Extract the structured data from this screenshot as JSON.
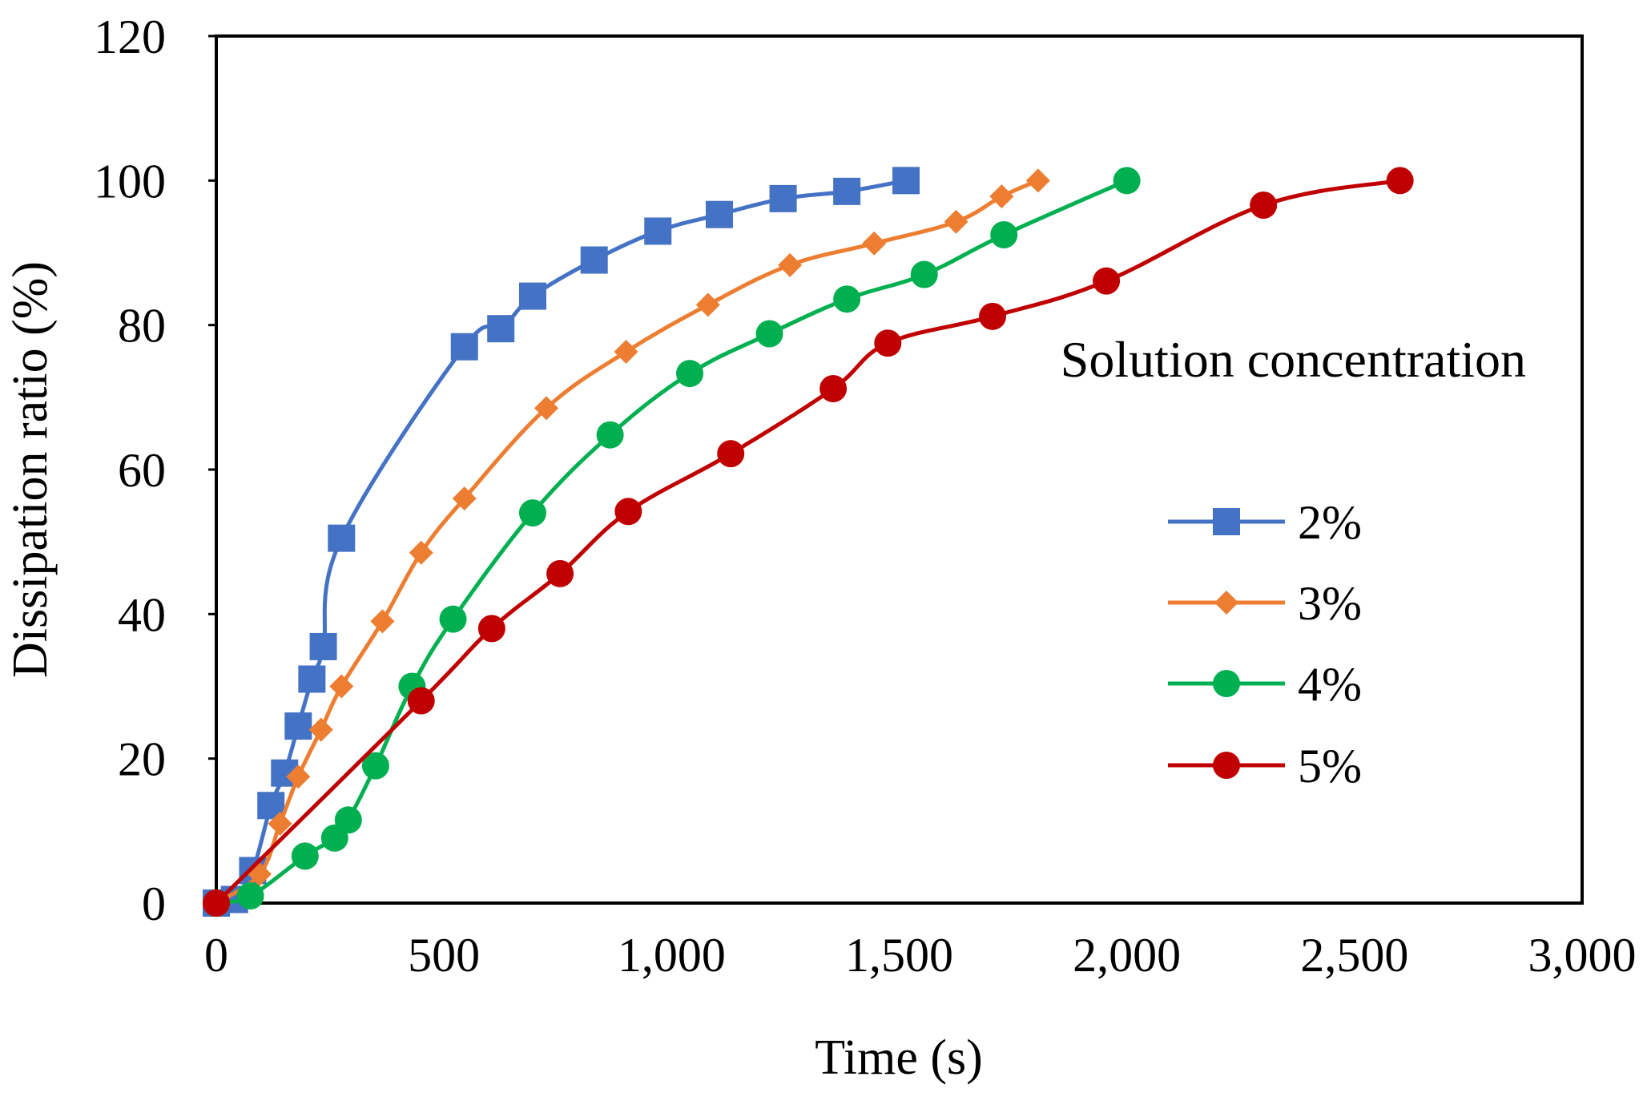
{
  "chart_data": {
    "type": "line",
    "title": "",
    "xlabel": "Time (s)",
    "ylabel": "Dissipation ratio (%)",
    "xlim": [
      0,
      3000
    ],
    "ylim": [
      0,
      120
    ],
    "xticks": [
      0,
      500,
      1000,
      1500,
      2000,
      2500,
      3000
    ],
    "xtick_labels": [
      "0",
      "500",
      "1,000",
      "1,500",
      "2,000",
      "2,500",
      "3,000"
    ],
    "yticks": [
      0,
      20,
      40,
      60,
      80,
      100,
      120
    ],
    "ytick_labels": [
      "0",
      "20",
      "40",
      "60",
      "80",
      "100",
      "120"
    ],
    "grid": false,
    "legend": {
      "title": "Solution concentration",
      "placement": "right"
    },
    "series": [
      {
        "name": "2%",
        "color": "#4472C4",
        "marker": "square",
        "x": [
          0,
          40,
          80,
          120,
          150,
          180,
          210,
          235,
          275,
          545,
          625,
          695,
          830,
          970,
          1105,
          1245,
          1385,
          1515
        ],
        "y": [
          0,
          0.5,
          4.5,
          13.5,
          18,
          24.5,
          31,
          35.5,
          50.5,
          77,
          79.5,
          84,
          89,
          93,
          95.3,
          97.5,
          98.5,
          100
        ]
      },
      {
        "name": "3%",
        "color": "#ED7D31",
        "marker": "diamond",
        "x": [
          0,
          95,
          140,
          180,
          230,
          275,
          365,
          450,
          545,
          725,
          900,
          1080,
          1260,
          1445,
          1625,
          1725,
          1805
        ],
        "y": [
          0,
          4,
          11,
          17.5,
          24,
          30,
          39,
          48.5,
          56,
          68.5,
          76.3,
          82.8,
          88.3,
          91.3,
          94.3,
          97.8,
          100
        ]
      },
      {
        "name": "4%",
        "color": "#00B050",
        "marker": "circle",
        "x": [
          0,
          75,
          195,
          260,
          290,
          350,
          430,
          520,
          695,
          865,
          1040,
          1215,
          1385,
          1555,
          1730,
          2000
        ],
        "y": [
          0,
          1,
          6.5,
          9,
          11.5,
          19,
          30,
          39.3,
          54,
          64.8,
          73.3,
          78.8,
          83.6,
          87,
          92.5,
          100
        ]
      },
      {
        "name": "5%",
        "color": "#C00000",
        "marker": "circle",
        "x": [
          0,
          450,
          605,
          755,
          905,
          1130,
          1355,
          1475,
          1705,
          1955,
          2300,
          2600
        ],
        "y": [
          0,
          28,
          38,
          45.6,
          54.2,
          62.2,
          71.2,
          77.5,
          81.2,
          86.1,
          96.6,
          100
        ]
      }
    ]
  }
}
